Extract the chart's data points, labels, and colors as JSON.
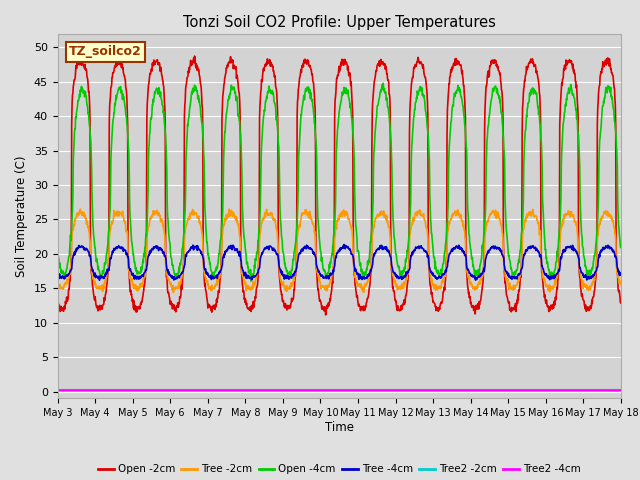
{
  "title": "Tonzi Soil CO2 Profile: Upper Temperatures",
  "xlabel": "Time",
  "ylabel": "Soil Temperature (C)",
  "ylim": [
    -1,
    52
  ],
  "xlim": [
    0,
    15
  ],
  "background_color": "#e0e0e0",
  "plot_bg_color": "#d3d3d3",
  "grid_color": "#ffffff",
  "annotation_text": "TZ_soilco2",
  "annotation_color": "#993300",
  "annotation_bg": "#ffffcc",
  "x_ticks": [
    0,
    1,
    2,
    3,
    4,
    5,
    6,
    7,
    8,
    9,
    10,
    11,
    12,
    13,
    14,
    15
  ],
  "x_tick_labels": [
    "May 3",
    "May 4",
    "May 5",
    "May 6",
    "May 7",
    "May 8",
    "May 9",
    "May 10",
    "May 11",
    "May 12",
    "May 13",
    "May 14",
    "May 15",
    "May 16",
    "May 17",
    "May 18"
  ],
  "y_ticks": [
    0,
    5,
    10,
    15,
    20,
    25,
    30,
    35,
    40,
    45,
    50
  ],
  "series": [
    {
      "label": "Open -2cm",
      "color": "#dd0000",
      "lw": 1.2
    },
    {
      "label": "Tree -2cm",
      "color": "#ff9900",
      "lw": 1.2
    },
    {
      "label": "Open -4cm",
      "color": "#00cc00",
      "lw": 1.2
    },
    {
      "label": "Tree -4cm",
      "color": "#0000cc",
      "lw": 1.2
    },
    {
      "label": "Tree2 -2cm",
      "color": "#00cccc",
      "lw": 1.2
    },
    {
      "label": "Tree2 -4cm",
      "color": "#ff00ff",
      "lw": 1.5
    }
  ]
}
